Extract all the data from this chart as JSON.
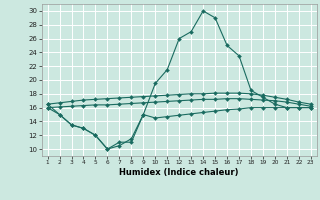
{
  "title": "",
  "xlabel": "Humidex (Indice chaleur)",
  "xlim": [
    0.5,
    23.5
  ],
  "ylim": [
    9,
    31
  ],
  "yticks": [
    10,
    12,
    14,
    16,
    18,
    20,
    22,
    24,
    26,
    28,
    30
  ],
  "xtick_labels": [
    "1",
    "2",
    "3",
    "4",
    "5",
    "6",
    "7",
    "8",
    "9",
    "10",
    "11",
    "12",
    "13",
    "14",
    "15",
    "16",
    "17",
    "18",
    "19",
    "20",
    "21",
    "22",
    "23"
  ],
  "bg_color": "#cce8e0",
  "line_color": "#1a6b60",
  "grid_color": "#ffffff",
  "lines": [
    {
      "x": [
        1,
        2,
        3,
        4,
        5,
        6,
        7,
        8,
        9,
        10,
        11,
        12,
        13,
        14,
        15,
        16,
        17,
        18,
        19,
        20,
        21,
        22,
        23
      ],
      "y": [
        16.5,
        15.0,
        13.5,
        13.0,
        12.0,
        10.0,
        10.5,
        11.5,
        15.0,
        19.5,
        21.5,
        26.0,
        27.0,
        30.0,
        29.0,
        25.0,
        23.5,
        18.5,
        17.5,
        16.5,
        16.0,
        16.0,
        16.0
      ]
    },
    {
      "x": [
        1,
        2,
        3,
        4,
        5,
        6,
        7,
        8,
        9,
        10,
        11,
        12,
        13,
        14,
        15,
        16,
        17,
        18,
        19,
        20,
        21,
        22,
        23
      ],
      "y": [
        16.5,
        16.7,
        16.9,
        17.1,
        17.2,
        17.3,
        17.4,
        17.5,
        17.6,
        17.7,
        17.8,
        17.9,
        18.0,
        18.0,
        18.1,
        18.1,
        18.1,
        18.0,
        17.8,
        17.5,
        17.2,
        16.8,
        16.5
      ]
    },
    {
      "x": [
        1,
        2,
        3,
        4,
        5,
        6,
        7,
        8,
        9,
        10,
        11,
        12,
        13,
        14,
        15,
        16,
        17,
        18,
        19,
        20,
        21,
        22,
        23
      ],
      "y": [
        16.0,
        16.1,
        16.2,
        16.3,
        16.4,
        16.4,
        16.5,
        16.6,
        16.7,
        16.8,
        16.9,
        17.0,
        17.1,
        17.2,
        17.2,
        17.3,
        17.3,
        17.2,
        17.1,
        17.0,
        16.8,
        16.5,
        16.2
      ]
    },
    {
      "x": [
        1,
        2,
        3,
        4,
        5,
        6,
        7,
        8,
        9,
        10,
        11,
        12,
        13,
        14,
        15,
        16,
        17,
        18,
        19,
        20,
        21,
        22,
        23
      ],
      "y": [
        16.0,
        15.0,
        13.5,
        13.0,
        12.0,
        10.0,
        11.0,
        11.0,
        15.0,
        14.5,
        14.7,
        14.9,
        15.1,
        15.3,
        15.5,
        15.7,
        15.8,
        16.0,
        16.0,
        16.0,
        16.0,
        16.0,
        16.0
      ]
    }
  ]
}
